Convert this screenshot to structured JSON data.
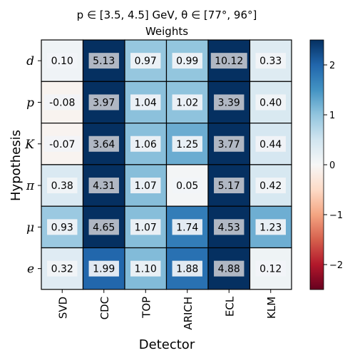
{
  "chart_data": {
    "type": "heatmap",
    "title_line1": "p ∈ [3.5, 4.5] GeV, θ ∈ [77°, 96°]",
    "title_line2": "Weights",
    "xlabel": "Detector",
    "ylabel": "Hypothesis",
    "x_categories": [
      "SVD",
      "CDC",
      "TOP",
      "ARICH",
      "ECL",
      "KLM"
    ],
    "y_categories": [
      "d",
      "p",
      "K",
      "π",
      "μ",
      "e"
    ],
    "values": [
      [
        0.1,
        5.13,
        0.97,
        0.99,
        10.12,
        0.33
      ],
      [
        -0.08,
        3.97,
        1.04,
        1.02,
        3.39,
        0.4
      ],
      [
        -0.07,
        3.64,
        1.06,
        1.25,
        3.77,
        0.44
      ],
      [
        0.38,
        4.31,
        1.07,
        0.05,
        5.17,
        0.42
      ],
      [
        0.93,
        4.65,
        1.07,
        1.74,
        4.53,
        1.23
      ],
      [
        0.32,
        1.99,
        1.1,
        1.88,
        4.88,
        0.12
      ]
    ],
    "value_labels": [
      [
        "0.10",
        "5.13",
        "0.97",
        "0.99",
        "10.12",
        "0.33"
      ],
      [
        "-0.08",
        "3.97",
        "1.04",
        "1.02",
        "3.39",
        "0.40"
      ],
      [
        "-0.07",
        "3.64",
        "1.06",
        "1.25",
        "3.77",
        "0.44"
      ],
      [
        "0.38",
        "4.31",
        "1.07",
        "0.05",
        "5.17",
        "0.42"
      ],
      [
        "0.93",
        "4.65",
        "1.07",
        "1.74",
        "4.53",
        "1.23"
      ],
      [
        "0.32",
        "1.99",
        "1.10",
        "1.88",
        "4.88",
        "0.12"
      ]
    ],
    "colormap": "RdBu",
    "color_range": [
      -2.5,
      2.5
    ],
    "colorbar_ticks": [
      2,
      1,
      0,
      -1,
      -2
    ],
    "colorbar_tick_labels": [
      "2",
      "1",
      "0",
      "−1",
      "−2"
    ],
    "colors": {
      "strong_red": "#67001f",
      "mid_red": "#d6604d",
      "white": "#f7f7f7",
      "mid_blue": "#4393c3",
      "strong_blue": "#053061"
    }
  }
}
